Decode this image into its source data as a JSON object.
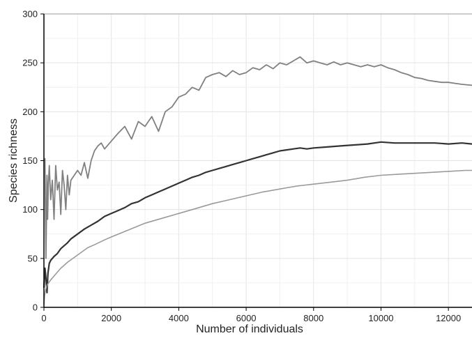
{
  "chart_data": {
    "type": "line",
    "title": "",
    "xlabel": "Number of individuals",
    "ylabel": "Species richness",
    "xlim": [
      0,
      12700
    ],
    "ylim": [
      0,
      300
    ],
    "x_ticks": [
      0,
      2000,
      4000,
      6000,
      8000,
      10000,
      12000
    ],
    "y_ticks": [
      0,
      50,
      100,
      150,
      200,
      250,
      300
    ],
    "x_tick_labels": [
      "0",
      "2000",
      "4000",
      "6000",
      "8000",
      "10000",
      "12000"
    ],
    "y_tick_labels": [
      "0",
      "50",
      "100",
      "150",
      "200",
      "250",
      "300"
    ],
    "grid": true,
    "legend": "none",
    "series": [
      {
        "color": "#808080",
        "stroke_width": 1.8,
        "x": [
          0,
          30,
          60,
          90,
          110,
          130,
          160,
          200,
          250,
          300,
          350,
          400,
          450,
          500,
          550,
          600,
          650,
          700,
          750,
          800,
          900,
          1000,
          1100,
          1200,
          1300,
          1400,
          1500,
          1600,
          1700,
          1800,
          2000,
          2200,
          2400,
          2600,
          2800,
          3000,
          3200,
          3400,
          3600,
          3800,
          4000,
          4200,
          4400,
          4600,
          4800,
          5000,
          5200,
          5400,
          5600,
          5800,
          6000,
          6200,
          6400,
          6600,
          6800,
          7000,
          7200,
          7400,
          7600,
          7800,
          8000,
          8200,
          8400,
          8600,
          8800,
          9000,
          9200,
          9400,
          9600,
          9800,
          10000,
          10200,
          10400,
          10600,
          10800,
          11000,
          11200,
          11400,
          11600,
          11800,
          12000,
          12200,
          12400,
          12700
        ],
        "y": [
          150,
          152,
          50,
          135,
          90,
          125,
          145,
          110,
          130,
          90,
          145,
          120,
          128,
          95,
          140,
          125,
          100,
          135,
          115,
          130,
          135,
          140,
          135,
          148,
          132,
          150,
          160,
          165,
          168,
          162,
          170,
          178,
          185,
          172,
          190,
          185,
          195,
          180,
          200,
          205,
          215,
          218,
          225,
          222,
          235,
          238,
          240,
          236,
          242,
          238,
          240,
          245,
          243,
          248,
          244,
          250,
          248,
          252,
          256,
          250,
          252,
          250,
          248,
          251,
          248,
          250,
          248,
          246,
          248,
          246,
          248,
          245,
          243,
          240,
          238,
          235,
          234,
          232,
          231,
          230,
          230,
          229,
          228,
          227
        ]
      },
      {
        "color": "#333333",
        "stroke_width": 2.2,
        "x": [
          0,
          30,
          60,
          90,
          120,
          160,
          200,
          300,
          400,
          500,
          600,
          700,
          800,
          1000,
          1200,
          1400,
          1600,
          1800,
          2000,
          2200,
          2400,
          2600,
          2800,
          3000,
          3200,
          3400,
          3600,
          3800,
          4000,
          4200,
          4400,
          4600,
          4800,
          5000,
          5200,
          5400,
          5600,
          5800,
          6000,
          6200,
          6400,
          6600,
          6800,
          7000,
          7200,
          7400,
          7600,
          7800,
          8000,
          8400,
          8800,
          9200,
          9600,
          10000,
          10400,
          10800,
          11200,
          11600,
          12000,
          12400,
          12700
        ],
        "y": [
          20,
          40,
          30,
          15,
          35,
          45,
          48,
          52,
          55,
          60,
          63,
          66,
          70,
          75,
          80,
          84,
          88,
          93,
          96,
          99,
          102,
          106,
          108,
          112,
          115,
          118,
          121,
          124,
          127,
          130,
          133,
          135,
          138,
          140,
          142,
          144,
          146,
          148,
          150,
          152,
          154,
          156,
          158,
          160,
          161,
          162,
          163,
          162,
          163,
          164,
          165,
          166,
          167,
          169,
          168,
          168,
          168,
          168,
          167,
          168,
          167
        ]
      },
      {
        "color": "#9a9a9a",
        "stroke_width": 1.6,
        "x": [
          0,
          20,
          50,
          100,
          200,
          300,
          400,
          500,
          700,
          900,
          1100,
          1300,
          1500,
          1800,
          2000,
          2500,
          3000,
          3500,
          4000,
          4500,
          5000,
          5500,
          6000,
          6500,
          7000,
          7500,
          8000,
          8500,
          9000,
          9500,
          10000,
          10500,
          11000,
          11500,
          12000,
          12500,
          12700
        ],
        "y": [
          3,
          12,
          18,
          23,
          28,
          32,
          36,
          40,
          46,
          51,
          56,
          61,
          64,
          69,
          72,
          79,
          86,
          91,
          96,
          101,
          106,
          110,
          114,
          118,
          121,
          124,
          126,
          128,
          130,
          133,
          135,
          136,
          137,
          138,
          139,
          140,
          140
        ]
      }
    ]
  }
}
